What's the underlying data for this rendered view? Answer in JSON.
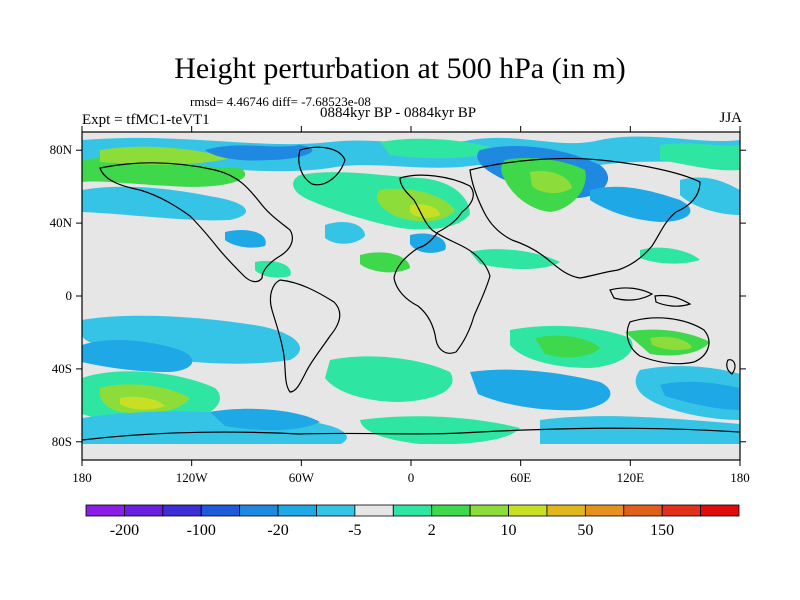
{
  "title": "Height perturbation at 500 hPa (in m)",
  "stats_text": "rmsd= 4.46746 diff= -7.68523e-08",
  "period_text": "0884kyr BP - 0884kyr BP",
  "experiment_text": "Expt = tfMC1-teVT1",
  "season_text": "JJA",
  "map": {
    "projection": "cylindrical-equidistant",
    "lon_range": [
      -180,
      180
    ],
    "lat_range": [
      -90,
      90
    ],
    "y_ticks": [
      {
        "lat": 80,
        "label": "80N"
      },
      {
        "lat": 40,
        "label": "40N"
      },
      {
        "lat": 0,
        "label": "0"
      },
      {
        "lat": -40,
        "label": "40S"
      },
      {
        "lat": -80,
        "label": "80S"
      }
    ],
    "x_ticks": [
      {
        "lon": -180,
        "label": "180"
      },
      {
        "lon": -120,
        "label": "120W"
      },
      {
        "lon": -60,
        "label": "60W"
      },
      {
        "lon": 0,
        "label": "0"
      },
      {
        "lon": 60,
        "label": "60E"
      },
      {
        "lon": 120,
        "label": "120E"
      },
      {
        "lon": 180,
        "label": "180"
      }
    ]
  },
  "colorbar": {
    "colors": [
      "#8c1fe6",
      "#6a1fe0",
      "#3e2ed8",
      "#1e5adc",
      "#1f88e0",
      "#1fa8e6",
      "#35c4e6",
      "#e6e6e6",
      "#2ee6a2",
      "#3ed84a",
      "#8cdc3a",
      "#c8e024",
      "#e0b81e",
      "#e6901e",
      "#e0601a",
      "#e0301a",
      "#e00c0c"
    ],
    "labels": [
      "-200",
      "-100",
      "-20",
      "-5",
      "2",
      "10",
      "50",
      "150"
    ]
  }
}
